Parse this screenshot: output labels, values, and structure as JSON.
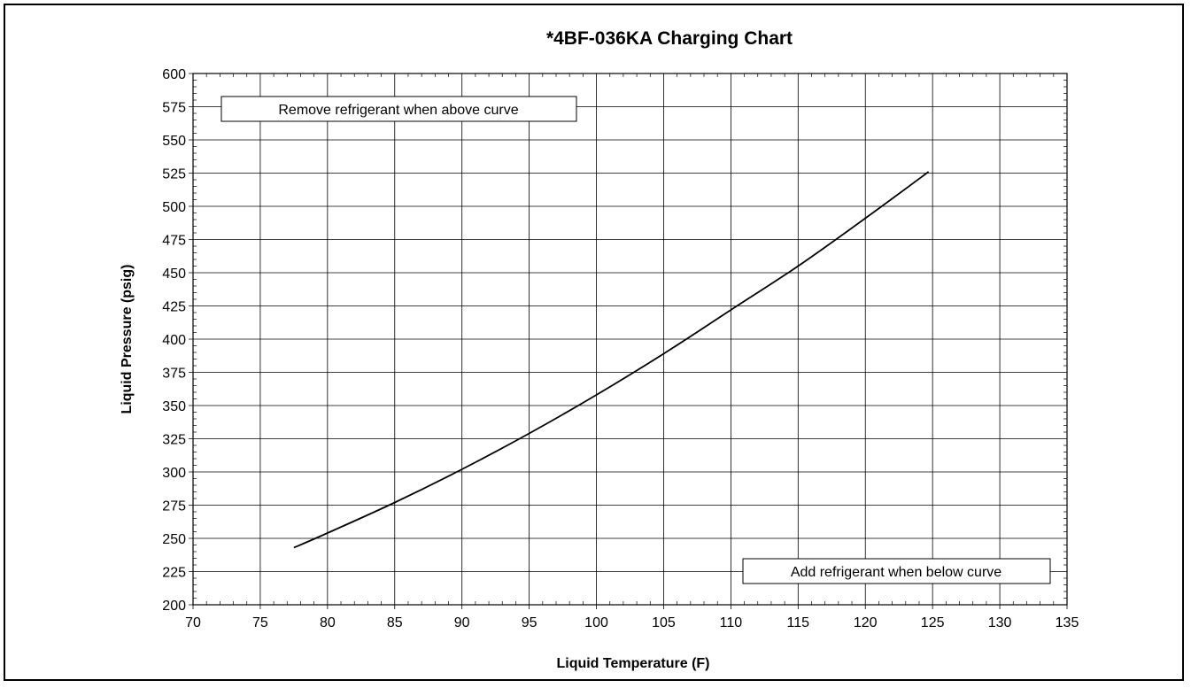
{
  "chart_data": {
    "type": "line",
    "title": "*4BF-036KA Charging Chart",
    "xlabel": "Liquid Temperature (F)",
    "ylabel": "Liquid Pressure (psig)",
    "xlim": [
      70,
      135
    ],
    "ylim": [
      200,
      600
    ],
    "x_ticks": [
      "70",
      "75",
      "80",
      "85",
      "90",
      "95",
      "100",
      "105",
      "110",
      "115",
      "120",
      "125",
      "130",
      "135"
    ],
    "y_ticks": [
      "200",
      "225",
      "250",
      "275",
      "300",
      "325",
      "350",
      "375",
      "400",
      "425",
      "450",
      "475",
      "500",
      "525",
      "550",
      "575",
      "600"
    ],
    "grid": true,
    "series": [
      {
        "x": [
          77.5,
          80,
          85,
          90,
          95,
          100,
          105,
          110,
          115,
          120,
          124.7
        ],
        "y": [
          243,
          254,
          277,
          302,
          329,
          358,
          389,
          422,
          455,
          491,
          526
        ]
      }
    ],
    "annotations": [
      {
        "text": "Remove refrigerant when above curve",
        "position": "top-left"
      },
      {
        "text": "Add refrigerant when below curve",
        "position": "bottom-right"
      }
    ]
  },
  "colors": {
    "curve": "#000000",
    "grid": "#000000",
    "background": "#ffffff"
  }
}
